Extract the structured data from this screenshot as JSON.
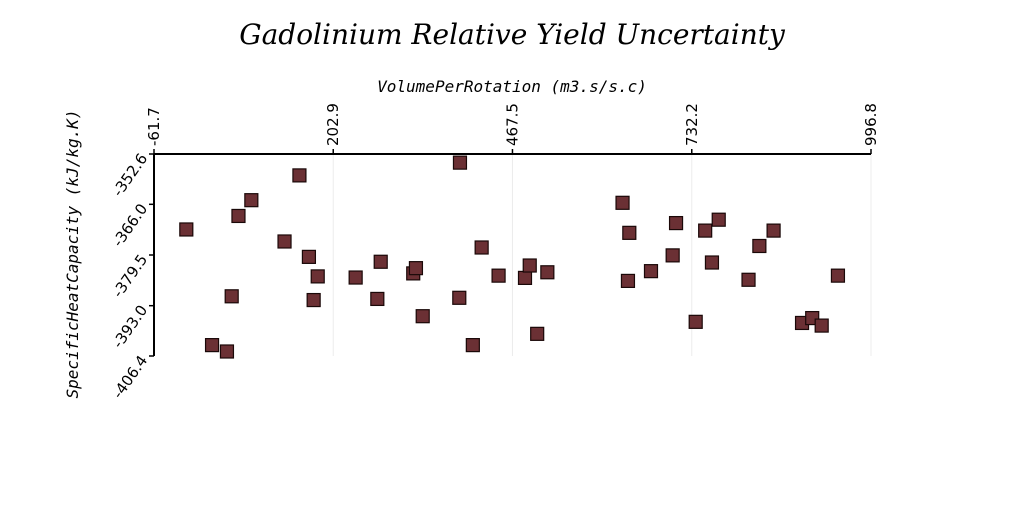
{
  "chart_data": {
    "type": "scatter",
    "title": "Gadolinium Relative Yield Uncertainty",
    "xlabel": "VolumePerRotation (m3.s/s.c)",
    "ylabel": "SpecificHeatCapacity (kJ/kg.K)",
    "xlim": [
      -61.7,
      996.8
    ],
    "ylim": [
      -406.4,
      -352.6
    ],
    "x_axis_position": "top",
    "x_ticks": [
      "-61.7",
      "202.9",
      "467.5",
      "732.2",
      "996.8"
    ],
    "y_ticks": [
      "-352.6",
      "-366.0",
      "-379.5",
      "-393.0",
      "-406.4"
    ],
    "grid": true,
    "marker": "square",
    "marker_color": "#6b3034",
    "series": [
      {
        "points": [
          [
            -14,
            -372.7
          ],
          [
            24,
            -403.5
          ],
          [
            46,
            -405.2
          ],
          [
            53,
            -390.5
          ],
          [
            63,
            -369.1
          ],
          [
            82,
            -364.9
          ],
          [
            131,
            -375.9
          ],
          [
            153,
            -358.3
          ],
          [
            167,
            -380.0
          ],
          [
            174,
            -391.5
          ],
          [
            180,
            -385.2
          ],
          [
            236,
            -385.5
          ],
          [
            268,
            -391.2
          ],
          [
            273,
            -381.3
          ],
          [
            321,
            -384.4
          ],
          [
            325,
            -383.0
          ],
          [
            335,
            -395.8
          ],
          [
            389,
            -390.9
          ],
          [
            390,
            -354.9
          ],
          [
            422,
            -377.5
          ],
          [
            519,
            -384.1
          ],
          [
            409,
            -403.5
          ],
          [
            447,
            -385.0
          ],
          [
            486,
            -385.6
          ],
          [
            493,
            -382.3
          ],
          [
            504,
            -400.5
          ],
          [
            630,
            -365.6
          ],
          [
            640,
            -373.6
          ],
          [
            638,
            -386.4
          ],
          [
            672,
            -383.8
          ],
          [
            704,
            -379.6
          ],
          [
            709,
            -371.0
          ],
          [
            738,
            -397.3
          ],
          [
            752,
            -373.0
          ],
          [
            762,
            -381.5
          ],
          [
            772,
            -370.1
          ],
          [
            816,
            -386.1
          ],
          [
            832,
            -377.1
          ],
          [
            853,
            -373.0
          ],
          [
            895,
            -397.6
          ],
          [
            910,
            -396.3
          ],
          [
            924,
            -398.3
          ],
          [
            948,
            -385.0
          ]
        ]
      }
    ]
  }
}
